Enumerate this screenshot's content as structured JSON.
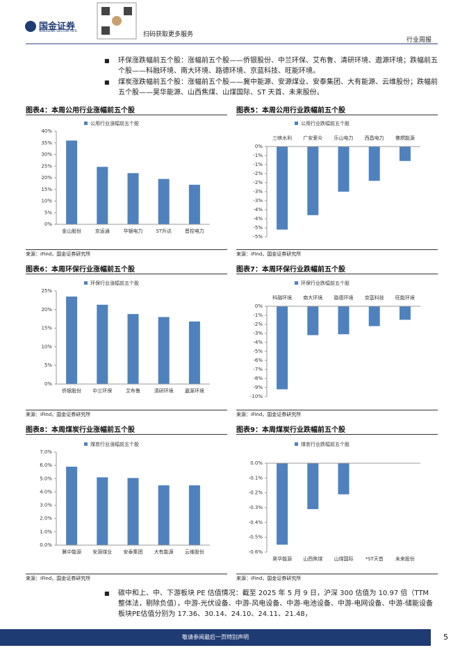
{
  "header": {
    "logo_cn": "国金证券",
    "logo_en": "SINOLINK SECURITIES",
    "qr_caption": "扫码获取更多服务",
    "report_type": "行业周报"
  },
  "bullets": [
    "环保涨跌幅前五个股：涨幅前五个股——侨银股份、中兰环保、艾布鲁、清研环境、遨源环境；跌幅前五个股——科融环境、南大环境、路德环境、京蓝科技、旺能环境。",
    "煤炭涨跌幅前五个股：涨幅前五个股——冀中能源、安源煤业、安泰集团、大有能源、云维股份；跌幅前五个股——昊华能源、山西焦煤、山煤国际、ST 天首、未来股份。",
    "碳中和上、中、下游板块 PE 估值情况：截至 2025 年 5 月 9 日，沪深 300 估值为 10.97 倍（TTM 整体法，剔除负值），中游-光伏设备、中游-风电设备、中游-电池设备、中游-电网设备、中游-储能设备板块PE估值分别为 17.36、30.14、24.10、24.11、21.48，"
  ],
  "chart_data": [
    {
      "type": "bar",
      "title": "图表4：本周公用行业涨幅前五个股",
      "source": "来源：iFind，国金证券研究所",
      "category_position": "bottom",
      "categories": [
        "金山股份",
        "京运通",
        "华银电力",
        "ST升达",
        "晋控电力"
      ],
      "series": [
        {
          "name": "公用行业涨幅前五个股",
          "color": "#4f81bd",
          "values": [
            36,
            24.7,
            22,
            19.5,
            17
          ]
        }
      ],
      "ylim": [
        0,
        40
      ],
      "yticks": [
        {
          "value": 0,
          "label": "0%"
        },
        {
          "value": 5,
          "label": "5%"
        },
        {
          "value": 10,
          "label": "10%"
        },
        {
          "value": 15,
          "label": "15%"
        },
        {
          "value": 20,
          "label": "20%"
        },
        {
          "value": 25,
          "label": "25%"
        },
        {
          "value": 30,
          "label": "30%"
        },
        {
          "value": 35,
          "label": "35%"
        },
        {
          "value": 40,
          "label": "40%"
        }
      ]
    },
    {
      "type": "bar",
      "title": "图表5：本周公用行业跌幅前五个股",
      "source": "来源：iFind，国金证券研究所",
      "category_position": "top",
      "categories": [
        "三峡水利",
        "广安爱众",
        "乐山电力",
        "西昌电力",
        "佛燃能源"
      ],
      "series": [
        {
          "name": "公用行业跌幅前五个股",
          "color": "#4f81bd",
          "values": [
            -4.6,
            -3.8,
            -2.5,
            -1.9,
            -0.8
          ]
        }
      ],
      "ylim": [
        -5,
        0
      ],
      "yticks": [
        {
          "value": 0,
          "label": "0%"
        },
        {
          "value": -0.5,
          "label": "-1%"
        },
        {
          "value": -1,
          "label": "-1%"
        },
        {
          "value": -1.5,
          "label": "-2%"
        },
        {
          "value": -2,
          "label": "-2%"
        },
        {
          "value": -2.5,
          "label": "-3%"
        },
        {
          "value": -3,
          "label": "-3%"
        },
        {
          "value": -3.5,
          "label": "-4%"
        },
        {
          "value": -4,
          "label": "-4%"
        },
        {
          "value": -4.5,
          "label": "-5%"
        },
        {
          "value": -5,
          "label": "-5%"
        }
      ]
    },
    {
      "type": "bar",
      "title": "图表6：本周环保行业涨幅前五个股",
      "source": "来源：iFind，国金证券研究所",
      "category_position": "bottom",
      "categories": [
        "侨银股份",
        "中兰环保",
        "艾布鲁",
        "清研环境",
        "遨源环境"
      ],
      "series": [
        {
          "name": "环保行业涨幅前五个股",
          "color": "#4f81bd",
          "values": [
            23.5,
            21.3,
            18.8,
            18,
            16.8
          ]
        }
      ],
      "ylim": [
        0,
        25
      ],
      "yticks": [
        {
          "value": 0,
          "label": "0%"
        },
        {
          "value": 5,
          "label": "5%"
        },
        {
          "value": 10,
          "label": "10%"
        },
        {
          "value": 15,
          "label": "15%"
        },
        {
          "value": 20,
          "label": "20%"
        },
        {
          "value": 25,
          "label": "25%"
        }
      ]
    },
    {
      "type": "bar",
      "title": "图表7：本周环保行业跌幅前五个股",
      "source": "来源：iFind，国金证券研究所",
      "category_position": "top",
      "categories": [
        "科融环境",
        "南大环境",
        "路德环境",
        "京蓝科技",
        "旺能环境"
      ],
      "series": [
        {
          "name": "环保行业跌幅前五个股",
          "color": "#4f81bd",
          "values": [
            -9.2,
            -3.2,
            -3.1,
            -2.2,
            -1.5
          ]
        }
      ],
      "ylim": [
        -10,
        0
      ],
      "yticks": [
        {
          "value": 0,
          "label": "0%"
        },
        {
          "value": -1,
          "label": "-1%"
        },
        {
          "value": -2,
          "label": "-2%"
        },
        {
          "value": -3,
          "label": "-3%"
        },
        {
          "value": -4,
          "label": "-4%"
        },
        {
          "value": -5,
          "label": "-5%"
        },
        {
          "value": -6,
          "label": "-6%"
        },
        {
          "value": -7,
          "label": "-7%"
        },
        {
          "value": -8,
          "label": "-8%"
        },
        {
          "value": -9,
          "label": "-9%"
        },
        {
          "value": -10,
          "label": "-10%"
        }
      ]
    },
    {
      "type": "bar",
      "title": "图表8：本周煤炭行业涨幅前五个股",
      "source": "来源：iFind，国金证券研究所",
      "category_position": "bottom",
      "categories": [
        "冀中能源",
        "安源煤业",
        "安泰集团",
        "大有能源",
        "云维股份"
      ],
      "series": [
        {
          "name": "煤炭行业涨幅前五个股",
          "color": "#4f81bd",
          "values": [
            5.9,
            5.1,
            5.05,
            4.5,
            4.5
          ]
        }
      ],
      "ylim": [
        0,
        7
      ],
      "yticks": [
        {
          "value": 0,
          "label": "0.0%"
        },
        {
          "value": 1,
          "label": "1.0%"
        },
        {
          "value": 2,
          "label": "2.0%"
        },
        {
          "value": 3,
          "label": "3.0%"
        },
        {
          "value": 4,
          "label": "4.0%"
        },
        {
          "value": 5,
          "label": "5.0%"
        },
        {
          "value": 6,
          "label": "6.0%"
        },
        {
          "value": 7,
          "label": "7.0%"
        }
      ]
    },
    {
      "type": "bar",
      "title": "图表9：本周煤炭行业跌幅前五个股",
      "source": "来源：iFind，国金证券研究所",
      "category_position": "bottom",
      "categories": [
        "昊华能源",
        "山西焦煤",
        "山煤国际",
        "*ST天首",
        "未来股份"
      ],
      "series": [
        {
          "name": "煤炭行业跌幅前五个股",
          "color": "#4f81bd",
          "values": [
            -0.55,
            -0.31,
            -0.21,
            0,
            0
          ]
        }
      ],
      "ylim": [
        -0.6,
        0
      ],
      "yticks": [
        {
          "value": 0,
          "label": "0.0%"
        },
        {
          "value": -0.1,
          "label": "-0.1%"
        },
        {
          "value": -0.2,
          "label": "-0.2%"
        },
        {
          "value": -0.3,
          "label": "-0.3%"
        },
        {
          "value": -0.4,
          "label": "-0.4%"
        },
        {
          "value": -0.5,
          "label": "-0.5%"
        },
        {
          "value": -0.6,
          "label": "-0.6%"
        }
      ]
    }
  ],
  "footer": {
    "disclaimer": "敬请参阅最后一页特别声明",
    "page_number": "5"
  }
}
